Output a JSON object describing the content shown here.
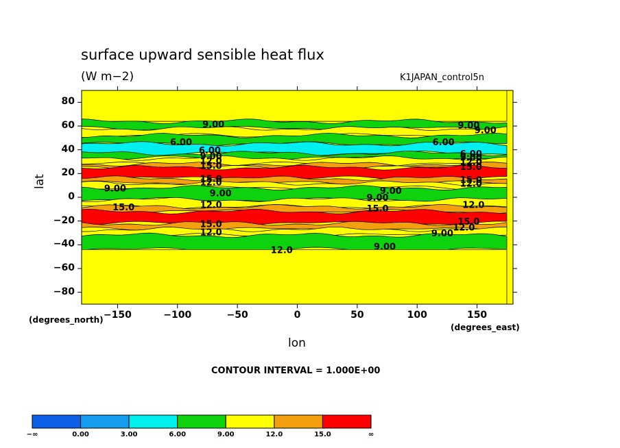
{
  "chart_data": {
    "type": "heatmap",
    "title": "surface upward sensible heat flux",
    "units": "(W m−2)",
    "run_label": "K1JAPAN_control5n",
    "xlabel": "lon",
    "ylabel": "lat",
    "x_caption": "(degrees_east)",
    "y_caption": "(degrees_north)",
    "contour_interval": "CONTOUR INTERVAL = 1.000E+00",
    "xlim": [
      -180,
      180
    ],
    "ylim": [
      -90,
      90
    ],
    "x_ticks": [
      "−150",
      "−100",
      "−50",
      "0",
      "50",
      "100",
      "150"
    ],
    "x_tick_values": [
      -150,
      -100,
      -50,
      0,
      50,
      100,
      150
    ],
    "y_ticks": [
      "80",
      "60",
      "40",
      "20",
      "0",
      "−20",
      "−40",
      "−60",
      "−80"
    ],
    "y_tick_values": [
      80,
      60,
      40,
      20,
      0,
      -20,
      -40,
      -60,
      -80
    ],
    "colorbar": {
      "labels": [
        "−∞",
        "0.00",
        "3.00",
        "6.00",
        "9.00",
        "12.0",
        "15.0",
        "∞"
      ],
      "colors": [
        "#0e5fe8",
        "#179df0",
        "#00f0f0",
        "#0ed20e",
        "#ffff00",
        "#f4a00e",
        "#ff0000"
      ]
    },
    "latitude_bands": [
      {
        "lat_from": 90,
        "lat_to": 64,
        "class": "9-12"
      },
      {
        "lat_from": 64,
        "lat_to": 58,
        "class": "6-9"
      },
      {
        "lat_from": 58,
        "lat_to": 52,
        "class": "9-12"
      },
      {
        "lat_from": 52,
        "lat_to": 45,
        "class": "6-9"
      },
      {
        "lat_from": 45,
        "lat_to": 37,
        "class": "3-6"
      },
      {
        "lat_from": 37,
        "lat_to": 33,
        "class": "6-9"
      },
      {
        "lat_from": 33,
        "lat_to": 28,
        "class": "9-12"
      },
      {
        "lat_from": 28,
        "lat_to": 25,
        "class": "12-15"
      },
      {
        "lat_from": 25,
        "lat_to": 16,
        "class": "15+"
      },
      {
        "lat_from": 16,
        "lat_to": 12,
        "class": "12-15"
      },
      {
        "lat_from": 12,
        "lat_to": 8,
        "class": "9-12"
      },
      {
        "lat_from": 8,
        "lat_to": -2,
        "class": "6-9"
      },
      {
        "lat_from": -2,
        "lat_to": -8,
        "class": "9-12"
      },
      {
        "lat_from": -8,
        "lat_to": -12,
        "class": "12-15"
      },
      {
        "lat_from": -12,
        "lat_to": -22,
        "class": "15+"
      },
      {
        "lat_from": -22,
        "lat_to": -27,
        "class": "12-15"
      },
      {
        "lat_from": -27,
        "lat_to": -32,
        "class": "9-12"
      },
      {
        "lat_from": -32,
        "lat_to": -44,
        "class": "6-9"
      },
      {
        "lat_from": -44,
        "lat_to": -90,
        "class": "9-12"
      }
    ],
    "contour_labels": [
      {
        "text": "9.00",
        "lon": -70,
        "lat": 61
      },
      {
        "text": "9.00",
        "lon": 143,
        "lat": 60
      },
      {
        "text": "9.00",
        "lon": 157,
        "lat": 56
      },
      {
        "text": "6.00",
        "lon": -97,
        "lat": 46
      },
      {
        "text": "6.00",
        "lon": 122,
        "lat": 46
      },
      {
        "text": "6.00",
        "lon": -73,
        "lat": 39
      },
      {
        "text": "6.00",
        "lon": 145,
        "lat": 36
      },
      {
        "text": "9.00",
        "lon": -72,
        "lat": 34
      },
      {
        "text": "9.00",
        "lon": 145,
        "lat": 33
      },
      {
        "text": "12.0",
        "lon": -72,
        "lat": 30
      },
      {
        "text": "12.0",
        "lon": 145,
        "lat": 29
      },
      {
        "text": "15.0",
        "lon": -72,
        "lat": 26
      },
      {
        "text": "15.0",
        "lon": 145,
        "lat": 25
      },
      {
        "text": "15.0",
        "lon": -72,
        "lat": 15
      },
      {
        "text": "15.0",
        "lon": 145,
        "lat": 14
      },
      {
        "text": "12.0",
        "lon": -72,
        "lat": 12
      },
      {
        "text": "12.0",
        "lon": 145,
        "lat": 11
      },
      {
        "text": "9.00",
        "lon": -152,
        "lat": 7
      },
      {
        "text": "9.00",
        "lon": -64,
        "lat": 3
      },
      {
        "text": "9.00",
        "lon": 78,
        "lat": 5
      },
      {
        "text": "9.00",
        "lon": 67,
        "lat": -1
      },
      {
        "text": "12.0",
        "lon": -72,
        "lat": -7
      },
      {
        "text": "12.0",
        "lon": 147,
        "lat": -7
      },
      {
        "text": "15.0",
        "lon": -145,
        "lat": -9
      },
      {
        "text": "15.0",
        "lon": 67,
        "lat": -10
      },
      {
        "text": "15.0",
        "lon": -72,
        "lat": -23
      },
      {
        "text": "15.0",
        "lon": 143,
        "lat": -21
      },
      {
        "text": "12.0",
        "lon": -72,
        "lat": -30
      },
      {
        "text": "12.0",
        "lon": 139,
        "lat": -26
      },
      {
        "text": "9.00",
        "lon": 121,
        "lat": -31
      },
      {
        "text": "9.00",
        "lon": 73,
        "lat": -42
      },
      {
        "text": "12.0",
        "lon": -13,
        "lat": -45
      }
    ]
  }
}
